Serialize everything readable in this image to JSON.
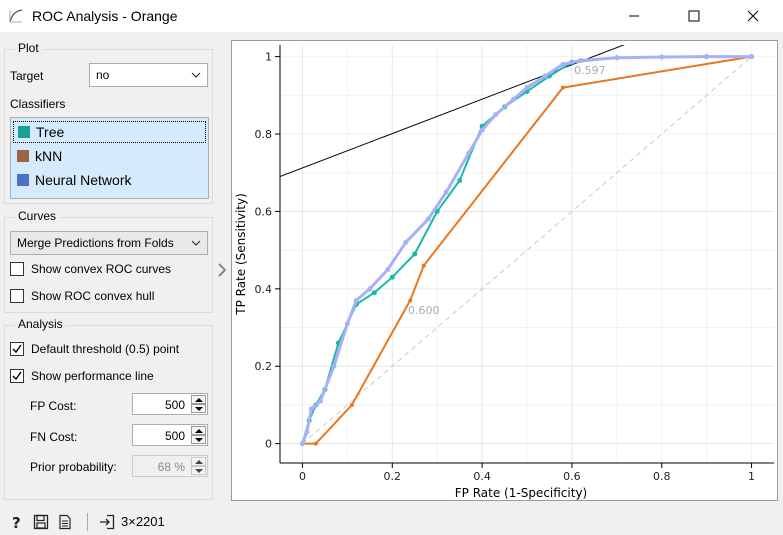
{
  "window": {
    "title": "ROC Analysis - Orange",
    "minimize_icon": "minimize-icon",
    "maximize_icon": "maximize-icon",
    "close_icon": "close-icon"
  },
  "plot_box": {
    "title": "Plot",
    "target_label": "Target",
    "target_value": "no",
    "classifiers_label": "Classifiers",
    "classifiers": [
      {
        "name": "Tree",
        "color": "#1b9e95"
      },
      {
        "name": "kNN",
        "color": "#9c6644"
      },
      {
        "name": "Neural Network",
        "color": "#4c72c4"
      }
    ]
  },
  "curves_box": {
    "title": "Curves",
    "merge_value": "Merge Predictions from Folds",
    "show_convex_roc_label": "Show convex ROC curves",
    "show_convex_roc_checked": false,
    "show_convex_hull_label": "Show ROC convex hull",
    "show_convex_hull_checked": false
  },
  "analysis_box": {
    "title": "Analysis",
    "default_threshold_label": "Default threshold (0.5) point",
    "default_threshold_checked": true,
    "performance_line_label": "Show performance line",
    "performance_line_checked": true,
    "fp_cost_label": "FP Cost:",
    "fp_cost_value": "500",
    "fn_cost_label": "FN Cost:",
    "fn_cost_value": "500",
    "prior_label": "Prior probability:",
    "prior_value": "68 %"
  },
  "status": {
    "help_icon": "help-icon",
    "save_icon": "save-icon",
    "report_icon": "report-icon",
    "input_icon": "input-icon",
    "data_summary": "3×2201"
  },
  "chart_data": {
    "type": "line",
    "xlabel": "FP Rate (1-Specificity)",
    "ylabel": "TP Rate (Sensitivity)",
    "xlim": [
      -0.05,
      1.05
    ],
    "ylim": [
      -0.05,
      1.03
    ],
    "xticks": [
      "0",
      "0.2",
      "0.4",
      "0.6",
      "0.8",
      "1"
    ],
    "yticks": [
      "0",
      "0.2",
      "0.4",
      "0.6",
      "0.8",
      "1"
    ],
    "grid": true,
    "series": [
      {
        "name": "Tree",
        "color": "#1bb8a8",
        "x": [
          0,
          0.015,
          0.03,
          0.05,
          0.08,
          0.12,
          0.16,
          0.2,
          0.25,
          0.3,
          0.35,
          0.4,
          0.45,
          0.5,
          0.55,
          0.6,
          0.7,
          0.8,
          0.9,
          1
        ],
        "y": [
          0,
          0.06,
          0.1,
          0.14,
          0.26,
          0.36,
          0.39,
          0.43,
          0.49,
          0.6,
          0.68,
          0.82,
          0.87,
          0.91,
          0.95,
          0.985,
          0.997,
          0.999,
          1,
          1
        ]
      },
      {
        "name": "kNN",
        "color": "#e87722",
        "x": [
          0,
          0.03,
          0.11,
          0.24,
          0.27,
          0.58,
          1
        ],
        "y": [
          0,
          0,
          0.1,
          0.37,
          0.46,
          0.92,
          1
        ]
      },
      {
        "name": "Neural Network",
        "color": "#a6b2f5",
        "x": [
          0,
          0.01,
          0.02,
          0.04,
          0.07,
          0.1,
          0.12,
          0.15,
          0.19,
          0.23,
          0.28,
          0.32,
          0.37,
          0.4,
          0.43,
          0.47,
          0.5,
          0.54,
          0.58,
          0.62,
          0.7,
          0.8,
          0.9,
          1
        ],
        "y": [
          0,
          0.03,
          0.09,
          0.11,
          0.2,
          0.31,
          0.37,
          0.4,
          0.45,
          0.52,
          0.58,
          0.65,
          0.75,
          0.81,
          0.85,
          0.89,
          0.92,
          0.95,
          0.98,
          0.99,
          0.997,
          0.999,
          1,
          1
        ]
      }
    ],
    "diagonal": {
      "x": [
        0,
        1
      ],
      "y": [
        0,
        1
      ],
      "color": "#c8c8c8"
    },
    "performance_line": {
      "x": [
        -0.05,
        0.76
      ],
      "y": [
        0.69,
        1.05
      ],
      "color": "#000000"
    },
    "annotations": [
      {
        "text": "0.597",
        "x": 0.64,
        "y": 0.955,
        "color": "#aaaaaa"
      },
      {
        "text": "0.600",
        "x": 0.27,
        "y": 0.335,
        "color": "#aaaaaa"
      }
    ]
  }
}
